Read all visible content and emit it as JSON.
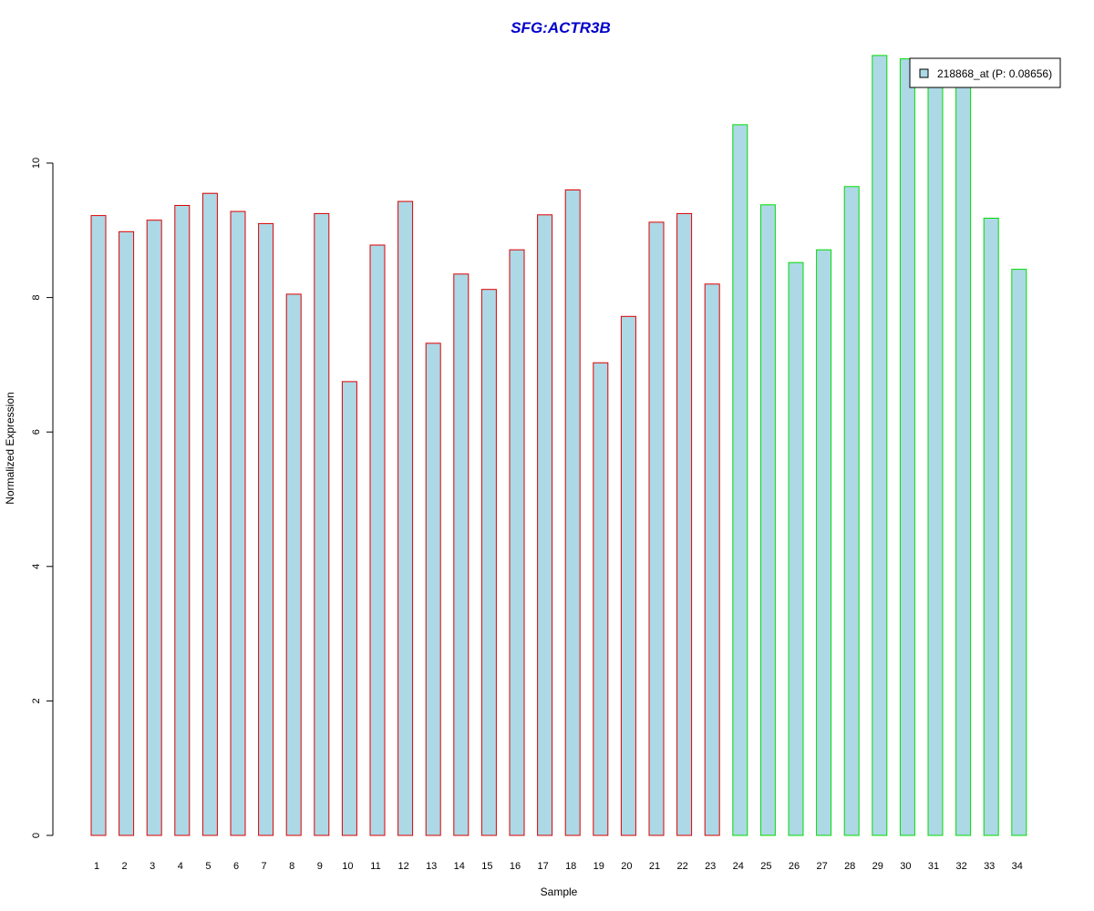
{
  "chart_data": {
    "type": "bar",
    "title": "SFG:ACTR3B",
    "xlabel": "Sample",
    "ylabel": "Normalized Expression",
    "categories": [
      "1",
      "2",
      "3",
      "4",
      "5",
      "6",
      "7",
      "8",
      "9",
      "10",
      "11",
      "12",
      "13",
      "14",
      "15",
      "16",
      "17",
      "18",
      "19",
      "20",
      "21",
      "22",
      "23",
      "24",
      "25",
      "26",
      "27",
      "28",
      "29",
      "30",
      "31",
      "32",
      "33",
      "34"
    ],
    "values": [
      9.22,
      8.98,
      9.15,
      9.37,
      9.55,
      9.28,
      9.1,
      8.05,
      9.25,
      6.75,
      8.78,
      9.43,
      7.32,
      8.35,
      8.12,
      8.71,
      9.23,
      9.6,
      7.03,
      7.72,
      9.12,
      9.25,
      8.2,
      10.57,
      9.38,
      8.52,
      8.71,
      9.65,
      11.6,
      11.55,
      11.15,
      11.15,
      9.18,
      8.42
    ],
    "group_a_count": 23,
    "ylim": [
      0,
      11.6
    ],
    "yticks": [
      0,
      2,
      4,
      6,
      8,
      10
    ],
    "legend": {
      "label": "218868_at (P: 0.08656)",
      "placement": "top-right"
    },
    "colors": {
      "fill": "#add8e6",
      "group_a_border": "#dd0000",
      "group_b_border": "#00dd00",
      "title": "#0000cc"
    },
    "grid": false
  }
}
